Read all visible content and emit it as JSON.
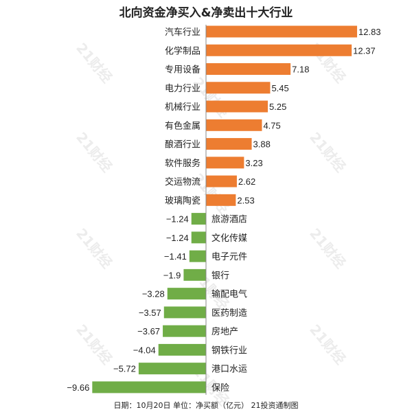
{
  "chart_data": {
    "type": "bar",
    "orientation": "horizontal",
    "title": "北向资金净买入&净卖出十大行业",
    "categories": [
      "汽车行业",
      "化学制品",
      "专用设备",
      "电力行业",
      "机械行业",
      "有色金属",
      "酿酒行业",
      "软件服务",
      "交运物流",
      "玻璃陶瓷",
      "旅游酒店",
      "文化传媒",
      "电子元件",
      "银行",
      "输配电气",
      "医药制造",
      "房地产",
      "钢铁行业",
      "港口水运",
      "保险"
    ],
    "values": [
      12.83,
      12.37,
      7.18,
      5.45,
      5.25,
      4.75,
      3.88,
      3.23,
      2.62,
      2.53,
      -1.24,
      -1.24,
      -1.41,
      -1.9,
      -3.28,
      -3.57,
      -3.67,
      -4.04,
      -5.72,
      -9.66
    ],
    "value_labels": [
      "12.83",
      "12.37",
      "7.18",
      "5.45",
      "5.25",
      "4.75",
      "3.88",
      "3.23",
      "2.62",
      "2.53",
      "−1.24",
      "−1.24",
      "−1.41",
      "−1.9",
      "−3.28",
      "−3.57",
      "−3.67",
      "−4.04",
      "−5.72",
      "−9.66"
    ],
    "xlabel": "",
    "ylabel": "",
    "grid": false,
    "colors": {
      "positive": "#ED7D31",
      "negative": "#70AD47"
    },
    "footer": "日期：10月20日 单位：净买额（亿元） 21投资通制图",
    "watermark": "21财经"
  }
}
